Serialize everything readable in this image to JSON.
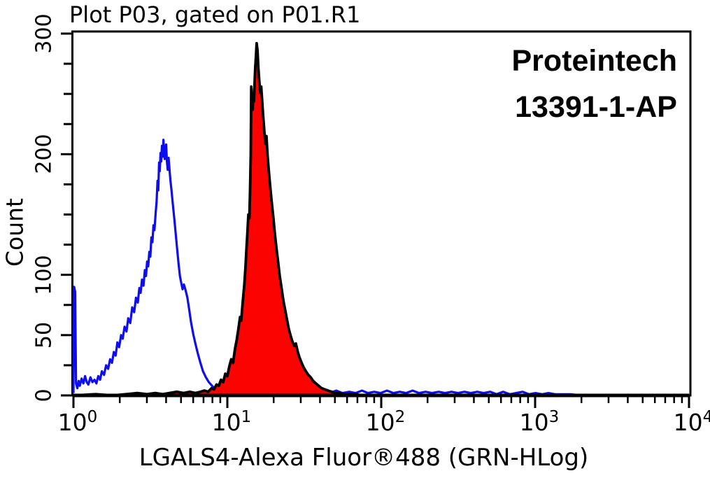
{
  "title": "Plot P03, gated on P01.R1",
  "watermark": {
    "line1": "Proteintech",
    "line2": "13391-1-AP"
  },
  "chart_data": {
    "type": "area",
    "title": "Plot P03, gated on P01.R1",
    "xlabel": "LGALS4-Alexa Fluor®488 (GRN-HLog)",
    "ylabel": "Count",
    "x_scale": "log",
    "xlim": [
      1,
      10000
    ],
    "ylim": [
      0,
      300
    ],
    "grid": false,
    "legend": "none",
    "annotations": [
      "Proteintech",
      "13391-1-AP"
    ],
    "x_ticks": [
      {
        "v": 1,
        "base": "10",
        "exp": "0"
      },
      {
        "v": 10,
        "base": "10",
        "exp": "1"
      },
      {
        "v": 100,
        "base": "10",
        "exp": "2"
      },
      {
        "v": 1000,
        "base": "10",
        "exp": "3"
      },
      {
        "v": 10000,
        "base": "10",
        "exp": "4"
      }
    ],
    "y_ticks": [
      {
        "v": 0,
        "label": "0"
      },
      {
        "v": 25,
        "label": ""
      },
      {
        "v": 50,
        "label": "50"
      },
      {
        "v": 75,
        "label": ""
      },
      {
        "v": 100,
        "label": "100"
      },
      {
        "v": 125,
        "label": ""
      },
      {
        "v": 150,
        "label": ""
      },
      {
        "v": 175,
        "label": ""
      },
      {
        "v": 200,
        "label": "200"
      },
      {
        "v": 225,
        "label": ""
      },
      {
        "v": 250,
        "label": ""
      },
      {
        "v": 275,
        "label": ""
      },
      {
        "v": 300,
        "label": "300"
      }
    ],
    "series": [
      {
        "name": "control-blue-outline",
        "color": "#0d0df0",
        "fill": "none",
        "peak": {
          "x": 3.8,
          "count": 212
        },
        "points": [
          [
            1.0,
            2
          ],
          [
            1.01,
            90
          ],
          [
            1.025,
            86
          ],
          [
            1.04,
            10
          ],
          [
            1.06,
            6
          ],
          [
            1.08,
            12
          ],
          [
            1.1,
            8
          ],
          [
            1.13,
            14
          ],
          [
            1.16,
            10
          ],
          [
            1.19,
            16
          ],
          [
            1.22,
            11
          ],
          [
            1.25,
            9
          ],
          [
            1.29,
            15
          ],
          [
            1.33,
            11
          ],
          [
            1.37,
            13
          ],
          [
            1.41,
            10
          ],
          [
            1.45,
            16
          ],
          [
            1.49,
            13
          ],
          [
            1.53,
            20
          ],
          [
            1.58,
            17
          ],
          [
            1.63,
            25
          ],
          [
            1.68,
            22
          ],
          [
            1.73,
            30
          ],
          [
            1.78,
            27
          ],
          [
            1.83,
            36
          ],
          [
            1.88,
            33
          ],
          [
            1.93,
            44
          ],
          [
            1.98,
            40
          ],
          [
            2.04,
            50
          ],
          [
            2.09,
            47
          ],
          [
            2.15,
            57
          ],
          [
            2.21,
            53
          ],
          [
            2.27,
            64
          ],
          [
            2.34,
            60
          ],
          [
            2.41,
            73
          ],
          [
            2.48,
            69
          ],
          [
            2.55,
            81
          ],
          [
            2.62,
            77
          ],
          [
            2.68,
            89
          ],
          [
            2.73,
            85
          ],
          [
            2.79,
            96
          ],
          [
            2.85,
            91
          ],
          [
            2.91,
            104
          ],
          [
            2.96,
            99
          ],
          [
            3.01,
            111
          ],
          [
            3.06,
            107
          ],
          [
            3.11,
            119
          ],
          [
            3.16,
            115
          ],
          [
            3.21,
            131
          ],
          [
            3.26,
            127
          ],
          [
            3.31,
            141
          ],
          [
            3.36,
            137
          ],
          [
            3.42,
            151
          ],
          [
            3.47,
            161
          ],
          [
            3.52,
            178
          ],
          [
            3.56,
            170
          ],
          [
            3.6,
            193
          ],
          [
            3.64,
            186
          ],
          [
            3.68,
            201
          ],
          [
            3.72,
            194
          ],
          [
            3.76,
            207
          ],
          [
            3.8,
            198
          ],
          [
            3.84,
            212
          ],
          [
            3.88,
            204
          ],
          [
            3.92,
            196
          ],
          [
            3.96,
            202
          ],
          [
            4.0,
            208
          ],
          [
            4.05,
            194
          ],
          [
            4.1,
            187
          ],
          [
            4.15,
            197
          ],
          [
            4.2,
            189
          ],
          [
            4.26,
            179
          ],
          [
            4.33,
            171
          ],
          [
            4.42,
            159
          ],
          [
            4.52,
            147
          ],
          [
            4.62,
            134
          ],
          [
            4.72,
            121
          ],
          [
            4.82,
            109
          ],
          [
            4.92,
            99
          ],
          [
            5.02,
            93
          ],
          [
            5.12,
            88
          ],
          [
            5.22,
            92
          ],
          [
            5.36,
            87
          ],
          [
            5.5,
            81
          ],
          [
            5.65,
            71
          ],
          [
            5.8,
            61
          ],
          [
            6.0,
            51
          ],
          [
            6.2,
            43
          ],
          [
            6.42,
            35
          ],
          [
            6.68,
            27
          ],
          [
            6.95,
            20
          ],
          [
            7.25,
            15
          ],
          [
            7.58,
            11
          ],
          [
            7.95,
            8
          ],
          [
            8.4,
            5
          ],
          [
            8.9,
            3
          ],
          [
            9.5,
            2
          ],
          [
            10.2,
            3
          ],
          [
            11,
            1
          ],
          [
            12,
            3
          ],
          [
            13,
            1
          ],
          [
            14.2,
            3
          ],
          [
            15.5,
            2
          ],
          [
            17,
            4
          ],
          [
            18.5,
            2
          ],
          [
            20,
            3
          ],
          [
            22,
            2
          ],
          [
            24,
            4
          ],
          [
            26.5,
            2
          ],
          [
            29,
            3
          ],
          [
            32,
            2
          ],
          [
            35,
            4
          ],
          [
            38.5,
            2
          ],
          [
            42,
            3
          ],
          [
            46,
            2
          ],
          [
            51,
            4
          ],
          [
            56,
            2
          ],
          [
            62,
            3
          ],
          [
            68,
            2
          ],
          [
            75,
            4
          ],
          [
            82,
            2
          ],
          [
            90,
            3
          ],
          [
            99,
            2
          ],
          [
            109,
            4
          ],
          [
            120,
            2
          ],
          [
            132,
            3
          ],
          [
            145,
            2
          ],
          [
            160,
            4
          ],
          [
            176,
            2
          ],
          [
            194,
            3
          ],
          [
            214,
            2
          ],
          [
            236,
            3
          ],
          [
            260,
            2
          ],
          [
            286,
            3
          ],
          [
            315,
            2
          ],
          [
            347,
            3
          ],
          [
            382,
            2
          ],
          [
            421,
            3
          ],
          [
            463,
            2
          ],
          [
            510,
            3
          ],
          [
            562,
            1
          ],
          [
            620,
            3
          ],
          [
            683,
            1
          ],
          [
            752,
            2
          ],
          [
            828,
            3
          ],
          [
            912,
            1
          ],
          [
            1005,
            2
          ],
          [
            1110,
            1
          ],
          [
            1220,
            2
          ],
          [
            1350,
            1
          ],
          [
            1500,
            1
          ],
          [
            1700,
            1
          ],
          [
            2000,
            0
          ],
          [
            10000,
            0
          ]
        ]
      },
      {
        "name": "LGALS4-antibody-red-filled",
        "color": "#000000",
        "fill": "#fb0300",
        "peak": {
          "x": 15.5,
          "count": 292
        },
        "points": [
          [
            1.0,
            0
          ],
          [
            1.4,
            1
          ],
          [
            1.8,
            0
          ],
          [
            2.2,
            1
          ],
          [
            2.6,
            2
          ],
          [
            3.0,
            1
          ],
          [
            3.4,
            2
          ],
          [
            3.8,
            1
          ],
          [
            4.2,
            2
          ],
          [
            4.7,
            3
          ],
          [
            5.2,
            2
          ],
          [
            5.7,
            3
          ],
          [
            6.2,
            2
          ],
          [
            6.7,
            3
          ],
          [
            7.1,
            4
          ],
          [
            7.5,
            3
          ],
          [
            7.9,
            6
          ],
          [
            8.2,
            5
          ],
          [
            8.5,
            9
          ],
          [
            8.8,
            8
          ],
          [
            9.1,
            13
          ],
          [
            9.4,
            11
          ],
          [
            9.7,
            18
          ],
          [
            10.0,
            16
          ],
          [
            10.3,
            24
          ],
          [
            10.6,
            30
          ],
          [
            10.9,
            27
          ],
          [
            11.2,
            38
          ],
          [
            11.5,
            46
          ],
          [
            11.8,
            55
          ],
          [
            12.1,
            65
          ],
          [
            12.3,
            62
          ],
          [
            12.6,
            78
          ],
          [
            12.9,
            92
          ],
          [
            13.1,
            105
          ],
          [
            13.3,
            120
          ],
          [
            13.5,
            135
          ],
          [
            13.7,
            150
          ],
          [
            13.9,
            147
          ],
          [
            14.05,
            170
          ],
          [
            14.2,
            200
          ],
          [
            14.3,
            256
          ],
          [
            14.45,
            247
          ],
          [
            14.6,
            237
          ],
          [
            14.75,
            250
          ],
          [
            14.9,
            244
          ],
          [
            15.05,
            261
          ],
          [
            15.2,
            273
          ],
          [
            15.35,
            281
          ],
          [
            15.5,
            292
          ],
          [
            15.7,
            286
          ],
          [
            15.9,
            272
          ],
          [
            16.1,
            262
          ],
          [
            16.35,
            251
          ],
          [
            16.6,
            256
          ],
          [
            16.85,
            243
          ],
          [
            17.1,
            231
          ],
          [
            17.35,
            221
          ],
          [
            17.65,
            209
          ],
          [
            17.95,
            215
          ],
          [
            18.25,
            199
          ],
          [
            18.6,
            186
          ],
          [
            19.0,
            173
          ],
          [
            19.4,
            161
          ],
          [
            19.85,
            149
          ],
          [
            20.3,
            136
          ],
          [
            20.8,
            123
          ],
          [
            21.35,
            111
          ],
          [
            21.9,
            99
          ],
          [
            22.5,
            89
          ],
          [
            23.1,
            79
          ],
          [
            23.75,
            71
          ],
          [
            24.4,
            63
          ],
          [
            25.0,
            56
          ],
          [
            25.7,
            50
          ],
          [
            26.4,
            45
          ],
          [
            27.2,
            41
          ],
          [
            27.9,
            43
          ],
          [
            28.7,
            36
          ],
          [
            29.5,
            31
          ],
          [
            30.4,
            27
          ],
          [
            31.4,
            23
          ],
          [
            32.4,
            20
          ],
          [
            33.6,
            17
          ],
          [
            34.8,
            15
          ],
          [
            36.1,
            12
          ],
          [
            37.6,
            10
          ],
          [
            39.2,
            8
          ],
          [
            41.0,
            6
          ],
          [
            43.0,
            5
          ],
          [
            45.2,
            4
          ],
          [
            47.6,
            3
          ],
          [
            50.2,
            2
          ],
          [
            53.5,
            2
          ],
          [
            57.5,
            1
          ],
          [
            62.0,
            1
          ],
          [
            68.0,
            1
          ],
          [
            75.0,
            0
          ],
          [
            10000,
            0
          ]
        ]
      }
    ]
  }
}
